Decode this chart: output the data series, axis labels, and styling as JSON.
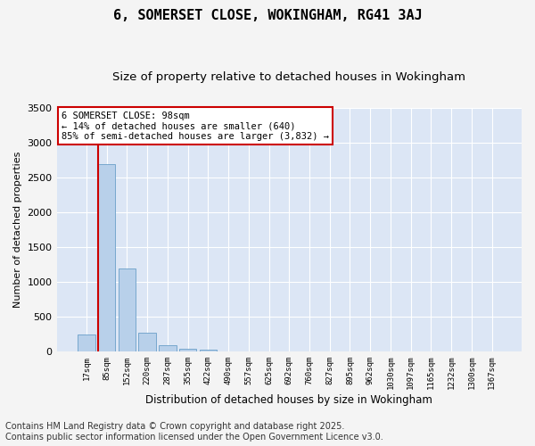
{
  "title": "6, SOMERSET CLOSE, WOKINGHAM, RG41 3AJ",
  "subtitle": "Size of property relative to detached houses in Wokingham",
  "xlabel": "Distribution of detached houses by size in Wokingham",
  "ylabel": "Number of detached properties",
  "categories": [
    "17sqm",
    "85sqm",
    "152sqm",
    "220sqm",
    "287sqm",
    "355sqm",
    "422sqm",
    "490sqm",
    "557sqm",
    "625sqm",
    "692sqm",
    "760sqm",
    "827sqm",
    "895sqm",
    "962sqm",
    "1030sqm",
    "1097sqm",
    "1165sqm",
    "1232sqm",
    "1300sqm",
    "1367sqm"
  ],
  "values": [
    240,
    2690,
    1185,
    270,
    85,
    35,
    20,
    0,
    0,
    0,
    0,
    0,
    0,
    0,
    0,
    0,
    0,
    0,
    0,
    0,
    0
  ],
  "bar_color": "#b8d0ea",
  "bar_edge_color": "#6a9fc8",
  "vline_x_index": 1,
  "vline_color": "#cc0000",
  "annotation_text": "6 SOMERSET CLOSE: 98sqm\n← 14% of detached houses are smaller (640)\n85% of semi-detached houses are larger (3,832) →",
  "annotation_box_color": "#ffffff",
  "annotation_box_edge_color": "#cc0000",
  "ylim": [
    0,
    3500
  ],
  "yticks": [
    0,
    500,
    1000,
    1500,
    2000,
    2500,
    3000,
    3500
  ],
  "figure_bg_color": "#f4f4f4",
  "plot_bg_color": "#dce6f5",
  "grid_color": "#ffffff",
  "title_fontsize": 11,
  "subtitle_fontsize": 9.5,
  "xlabel_fontsize": 8.5,
  "ylabel_fontsize": 8,
  "footer_text": "Contains HM Land Registry data © Crown copyright and database right 2025.\nContains public sector information licensed under the Open Government Licence v3.0.",
  "footer_fontsize": 7
}
